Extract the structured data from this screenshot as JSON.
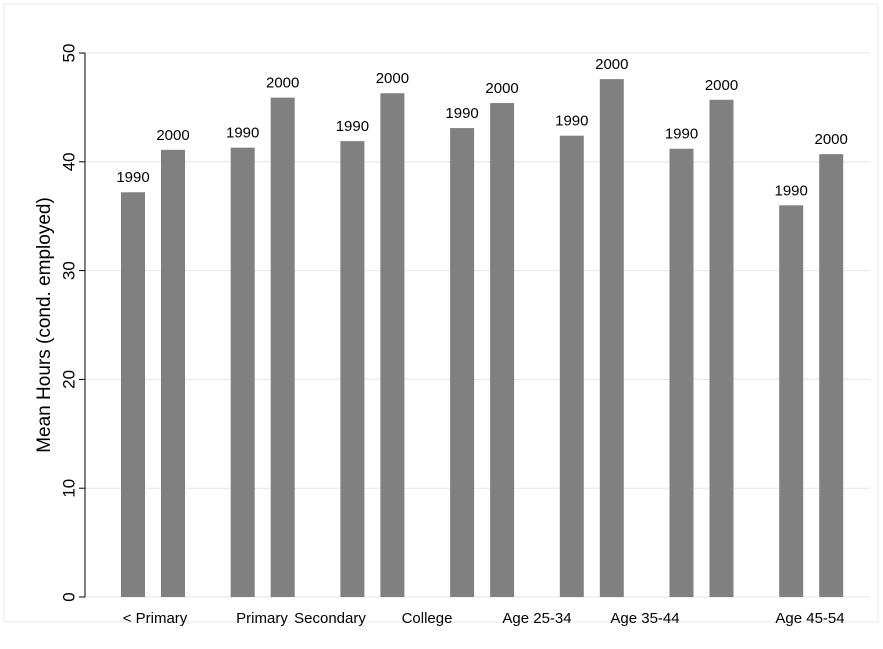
{
  "chart_data": {
    "type": "bar",
    "y_label": "Mean Hours (cond. employed)",
    "categories": [
      "< Primary",
      "Primary",
      "Secondary",
      "College",
      "Age 25-34",
      "Age 35-44",
      "Age 45-54"
    ],
    "series": [
      {
        "name": "1990",
        "color": "#808080",
        "values": [
          37.2,
          41.3,
          41.9,
          43.1,
          42.4,
          41.2,
          36.0
        ]
      },
      {
        "name": "2000",
        "color": "#808080",
        "values": [
          41.1,
          45.9,
          46.3,
          45.4,
          47.6,
          45.7,
          40.7
        ]
      }
    ],
    "ylim": [
      0,
      50
    ],
    "yticks": [
      0,
      10,
      20,
      30,
      40,
      50
    ],
    "grid": true
  }
}
